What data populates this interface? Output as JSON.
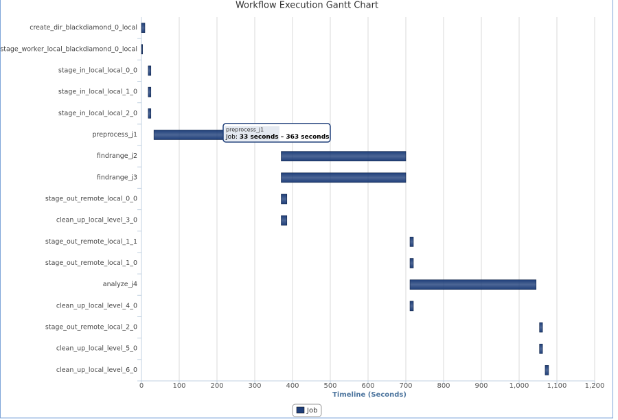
{
  "chart_data": {
    "type": "gantt",
    "title": "Workflow Execution Gantt Chart",
    "x_label": "Timeline (Seconds)",
    "categories": [
      "create_dir_blackdiamond_0_local",
      "stage_worker_local_blackdiamond_0_local",
      "stage_in_local_local_0_0",
      "stage_in_local_local_1_0",
      "stage_in_local_local_2_0",
      "preprocess_j1",
      "findrange_j2",
      "findrange_j3",
      "stage_out_remote_local_0_0",
      "clean_up_local_level_3_0",
      "stage_out_remote_local_1_1",
      "stage_out_remote_local_1_0",
      "analyze_j4",
      "clean_up_local_level_4_0",
      "stage_out_remote_local_2_0",
      "clean_up_local_level_5_0",
      "clean_up_local_level_6_0"
    ],
    "series": [
      {
        "name": "Job",
        "color": "#1f3f7a",
        "start": [
          0,
          0,
          18,
          18,
          18,
          33,
          370,
          370,
          370,
          370,
          711,
          711,
          711,
          711,
          1054,
          1054,
          1069
        ],
        "end": [
          9,
          3,
          25,
          25,
          25,
          363,
          700,
          700,
          385,
          385,
          720,
          720,
          1045,
          720,
          1062,
          1062,
          1078
        ]
      }
    ],
    "xlim": [
      0,
      1200
    ],
    "xticks": [
      0,
      100,
      200,
      300,
      400,
      500,
      600,
      700,
      800,
      900,
      {
        "value": 1000,
        "label": "1,000"
      },
      {
        "value": 1100,
        "label": "1,100"
      },
      {
        "value": 1200,
        "label": "1,200"
      }
    ],
    "grid": true,
    "legend": "bottom",
    "tooltip": {
      "title": "preprocess_j1",
      "label": "Job:",
      "text": "33 seconds – 363 seconds"
    }
  }
}
